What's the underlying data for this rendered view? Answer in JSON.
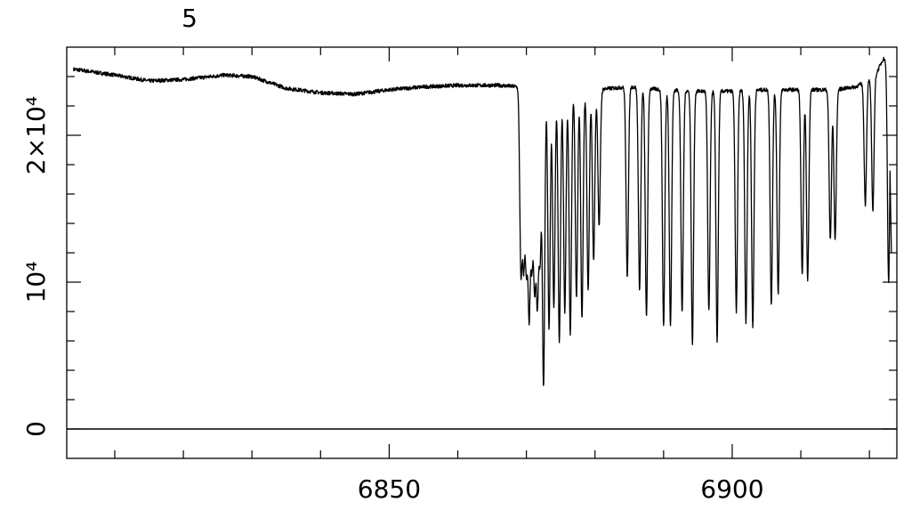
{
  "chart_data": {
    "type": "line",
    "title": "5",
    "xlabel": "",
    "ylabel": "",
    "xlim": [
      6803,
      6924
    ],
    "ylim": [
      -2000,
      26000
    ],
    "grid": false,
    "x_ticks": [
      {
        "value": 6850,
        "label": "6850"
      },
      {
        "value": 6900,
        "label": "6900"
      }
    ],
    "y_ticks": [
      {
        "value": 0,
        "label": "0"
      },
      {
        "value": 10000,
        "label": "10⁴"
      },
      {
        "value": 20000,
        "label": "2×10⁴"
      }
    ],
    "zero_line": 0,
    "series": [
      {
        "continuum": [
          [
            6804,
            24500
          ],
          [
            6810,
            24100
          ],
          [
            6815,
            23700
          ],
          [
            6820,
            23800
          ],
          [
            6826,
            24100
          ],
          [
            6830,
            24000
          ],
          [
            6835,
            23200
          ],
          [
            6840,
            22900
          ],
          [
            6845,
            22800
          ],
          [
            6850,
            23100
          ],
          [
            6855,
            23300
          ],
          [
            6860,
            23400
          ],
          [
            6866,
            23400
          ],
          [
            6869,
            23300
          ],
          [
            6875,
            23000
          ],
          [
            6880,
            23100
          ],
          [
            6885,
            23300
          ],
          [
            6890,
            23100
          ],
          [
            6895,
            23000
          ],
          [
            6900,
            23000
          ],
          [
            6905,
            23100
          ],
          [
            6910,
            23100
          ],
          [
            6915,
            23100
          ],
          [
            6918,
            23300
          ],
          [
            6920,
            23800
          ],
          [
            6921,
            24200
          ],
          [
            6922,
            25200
          ]
        ],
        "absorption_lines": [
          [
            6869.2,
            11000
          ],
          [
            6869.6,
            12000
          ],
          [
            6870.0,
            11800
          ],
          [
            6870.4,
            8600
          ],
          [
            6870.8,
            12200
          ],
          [
            6871.2,
            10500
          ],
          [
            6871.6,
            9500
          ],
          [
            6872.0,
            12200
          ],
          [
            6872.5,
            2900
          ],
          [
            6873.3,
            6800
          ],
          [
            6874.0,
            8300
          ],
          [
            6874.8,
            5900
          ],
          [
            6875.6,
            8000
          ],
          [
            6876.4,
            6500
          ],
          [
            6877.3,
            9000
          ],
          [
            6878.1,
            7500
          ],
          [
            6879.0,
            9400
          ],
          [
            6879.8,
            11500
          ],
          [
            6880.6,
            13800
          ],
          [
            6884.7,
            10400
          ],
          [
            6886.5,
            9500
          ],
          [
            6887.5,
            7600
          ],
          [
            6890.0,
            7000
          ],
          [
            6891.0,
            7000
          ],
          [
            6892.7,
            8000
          ],
          [
            6894.2,
            5800
          ],
          [
            6896.6,
            8000
          ],
          [
            6897.8,
            6000
          ],
          [
            6900.6,
            8000
          ],
          [
            6902.0,
            7300
          ],
          [
            6903.0,
            7000
          ],
          [
            6905.7,
            8500
          ],
          [
            6906.7,
            9200
          ],
          [
            6910.2,
            10500
          ],
          [
            6911.0,
            10200
          ],
          [
            6914.3,
            12900
          ],
          [
            6915.0,
            12900
          ],
          [
            6919.4,
            15300
          ],
          [
            6920.5,
            14900
          ],
          [
            6922.8,
            10000
          ]
        ]
      }
    ]
  }
}
